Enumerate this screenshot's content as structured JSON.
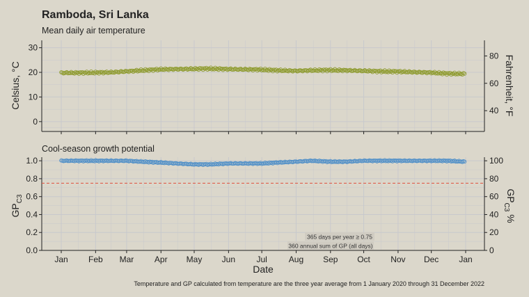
{
  "title": "Ramboda, Sri Lanka",
  "caption": "Temperature and GP calculated from temperature are the three year average from 1 January 2020 through 31 December 2022",
  "colors": {
    "background": "#dbd7cb",
    "grid": "#c8c9cc",
    "temperature": "#8d9a2c",
    "gp": "#4f8fc8",
    "threshold": "#e0503c"
  },
  "chart_data": [
    {
      "type": "scatter",
      "subtitle": "Mean daily air temperature",
      "xlabel": "",
      "x_ticks": [
        "Jan",
        "Feb",
        "Mar",
        "Apr",
        "May",
        "Jun",
        "Jul",
        "Aug",
        "Sep",
        "Oct",
        "Nov",
        "Dec",
        "Jan"
      ],
      "ylabel": "Celsius, °C",
      "ylim": [
        -4,
        33
      ],
      "y_ticks": [
        "0",
        "10",
        "20",
        "30"
      ],
      "y2label": "Fahrenheit, °F",
      "y2_ticks": [
        "40",
        "60",
        "80"
      ],
      "grid": true,
      "series": [
        {
          "x_day": [
            1,
            15,
            32,
            46,
            60,
            74,
            91,
            105,
            121,
            135,
            152,
            166,
            182,
            196,
            213,
            227,
            244,
            258,
            274,
            288,
            305,
            319,
            335,
            349,
            365
          ],
          "values": [
            19.8,
            19.8,
            19.9,
            20.0,
            20.4,
            20.8,
            21.2,
            21.3,
            21.4,
            21.5,
            21.3,
            21.2,
            21.1,
            20.8,
            20.6,
            20.8,
            20.9,
            20.8,
            20.6,
            20.4,
            20.3,
            20.1,
            19.9,
            19.5,
            19.4
          ]
        }
      ]
    },
    {
      "type": "scatter",
      "subtitle": "Cool-season growth potential",
      "xlabel": "Date",
      "x_ticks": [
        "Jan",
        "Feb",
        "Mar",
        "Apr",
        "May",
        "Jun",
        "Jul",
        "Aug",
        "Sep",
        "Oct",
        "Nov",
        "Dec",
        "Jan"
      ],
      "ylabel_main": "GP",
      "ylabel_sub": "C3",
      "ylim": [
        0,
        1.04
      ],
      "y_ticks": [
        "0.0",
        "0.2",
        "0.4",
        "0.6",
        "0.8",
        "1.0"
      ],
      "y2label_main": "GP",
      "y2label_sub": "C3",
      "y2label_suffix": " %",
      "y2_ticks": [
        "0",
        "20",
        "40",
        "60",
        "80",
        "100"
      ],
      "threshold": 0.75,
      "grid": true,
      "annotations": [
        "365 days per year ≥ 0.75",
        "360 annual sum of GP (all days)"
      ],
      "series": [
        {
          "x_day": [
            1,
            15,
            32,
            46,
            60,
            74,
            91,
            105,
            121,
            135,
            152,
            166,
            182,
            196,
            213,
            227,
            244,
            258,
            274,
            288,
            305,
            319,
            335,
            349,
            365
          ],
          "values": [
            1.0,
            1.0,
            1.0,
            1.0,
            1.0,
            0.99,
            0.98,
            0.97,
            0.96,
            0.96,
            0.97,
            0.97,
            0.97,
            0.98,
            0.99,
            1.0,
            0.99,
            0.99,
            1.0,
            1.0,
            1.0,
            1.0,
            1.0,
            1.0,
            0.99
          ]
        }
      ]
    }
  ]
}
